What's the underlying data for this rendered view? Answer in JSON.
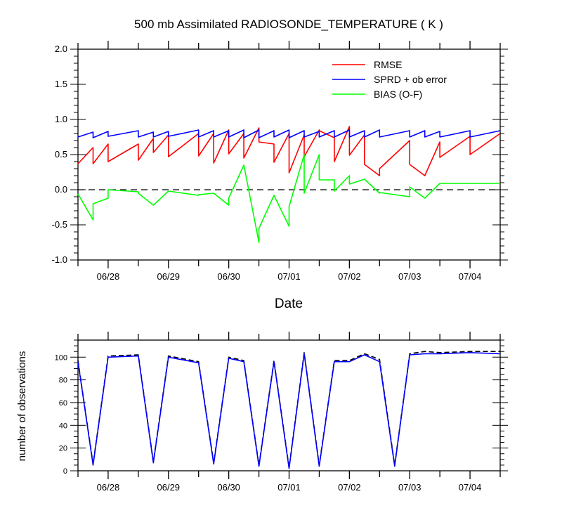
{
  "chart_data": [
    {
      "type": "line",
      "title": "500 mb Assimilated RADIOSONDE_TEMPERATURE ( K )",
      "xlabel": "Date",
      "ylabel": "",
      "x_ticks": [
        "06/28",
        "06/29",
        "06/30",
        "07/01",
        "07/02",
        "07/03",
        "07/04"
      ],
      "ylim": [
        -1.0,
        2.0
      ],
      "yticks": [
        "-1.0",
        "-0.5",
        "0.0",
        "0.5",
        "1.0",
        "1.5",
        "2.0"
      ],
      "grid": false,
      "legend": "top-right",
      "reference_line": {
        "y": 0.0,
        "style": "dashed"
      },
      "series": [
        {
          "name": "RMSE",
          "color": "#ff0000",
          "x": [
            0,
            0.5,
            0.5,
            1,
            1,
            2,
            2,
            2.5,
            2.5,
            3,
            3,
            4,
            4,
            4.5,
            4.5,
            5,
            5,
            5.5,
            5.5,
            6,
            6,
            6.5,
            6.5,
            7,
            7,
            7.5,
            7.5,
            8,
            8,
            8.5,
            8.5,
            9,
            9,
            9.5,
            9.5,
            10,
            10,
            11,
            11,
            11.5,
            11.5,
            12,
            12,
            13,
            13,
            14
          ],
          "values": [
            0.37,
            0.6,
            0.37,
            0.65,
            0.4,
            0.65,
            0.42,
            0.73,
            0.53,
            0.78,
            0.47,
            0.8,
            0.48,
            0.8,
            0.38,
            0.85,
            0.51,
            0.8,
            0.45,
            0.88,
            0.68,
            0.65,
            0.39,
            0.8,
            0.24,
            0.78,
            0.47,
            0.85,
            0.84,
            0.74,
            0.4,
            0.9,
            0.49,
            0.78,
            0.36,
            0.2,
            0.3,
            0.7,
            0.36,
            0.2,
            0.2,
            0.68,
            0.46,
            0.76,
            0.5,
            0.8
          ]
        },
        {
          "name": "SPRD + ob error",
          "color": "#0000ff",
          "x": [
            0,
            0.5,
            0.5,
            1,
            1,
            2,
            2,
            2.5,
            2.5,
            3,
            3,
            4,
            4,
            4.5,
            4.5,
            5,
            5,
            5.5,
            5.5,
            6,
            6,
            6.5,
            6.5,
            7,
            7,
            7.5,
            7.5,
            8,
            8,
            8.5,
            8.5,
            9,
            9,
            9.5,
            9.5,
            10,
            10,
            11,
            11,
            11.5,
            11.5,
            12,
            12,
            13,
            13,
            14
          ],
          "values": [
            0.75,
            0.82,
            0.74,
            0.83,
            0.76,
            0.84,
            0.75,
            0.82,
            0.75,
            0.83,
            0.76,
            0.85,
            0.75,
            0.84,
            0.75,
            0.84,
            0.75,
            0.85,
            0.74,
            0.85,
            0.74,
            0.84,
            0.75,
            0.85,
            0.74,
            0.84,
            0.75,
            0.83,
            0.75,
            0.84,
            0.75,
            0.85,
            0.75,
            0.84,
            0.75,
            0.85,
            0.75,
            0.84,
            0.75,
            0.84,
            0.75,
            0.83,
            0.75,
            0.84,
            0.75,
            0.84
          ]
        },
        {
          "name": "BIAS (O-F)",
          "color": "#00ff00",
          "x": [
            0,
            0.5,
            0.5,
            1,
            1,
            2,
            2,
            2.5,
            2.5,
            3,
            3,
            4,
            4,
            4.5,
            4.5,
            5,
            5,
            5.5,
            5.5,
            6,
            6,
            6.5,
            6.5,
            7,
            7,
            7.5,
            7.5,
            8,
            8,
            8.5,
            8.5,
            9,
            9,
            9.5,
            9.5,
            10,
            10,
            11,
            11,
            11.5,
            11.5,
            12,
            12,
            13,
            13,
            14
          ],
          "values": [
            -0.06,
            -0.43,
            -0.2,
            -0.12,
            0.0,
            -0.03,
            -0.05,
            -0.22,
            -0.22,
            -0.02,
            -0.02,
            -0.08,
            -0.07,
            -0.05,
            -0.05,
            -0.22,
            -0.12,
            0.35,
            0.35,
            -0.75,
            -0.55,
            -0.08,
            -0.08,
            -0.52,
            -0.24,
            0.5,
            -0.05,
            0.5,
            0.14,
            0.14,
            -0.02,
            0.2,
            0.08,
            0.15,
            0.15,
            -0.05,
            -0.04,
            -0.1,
            0.04,
            -0.12,
            -0.12,
            0.09,
            0.09,
            0.09,
            0.09,
            0.09
          ]
        }
      ]
    },
    {
      "type": "line",
      "title": "",
      "xlabel": "",
      "ylabel": "number of observations",
      "x_ticks": [
        "06/28",
        "06/29",
        "06/30",
        "07/01",
        "07/02",
        "07/03",
        "07/04"
      ],
      "ylim": [
        0,
        115
      ],
      "yticks": [
        "0",
        "20",
        "40",
        "60",
        "80",
        "100"
      ],
      "grid": false,
      "series": [
        {
          "color": "#000000",
          "style": "dashed",
          "x": [
            0,
            0.5,
            1,
            2,
            2.5,
            3,
            4,
            4.5,
            5,
            5.5,
            6,
            6.5,
            7,
            7.5,
            8,
            8.5,
            9,
            9.5,
            10,
            10.5,
            11,
            11.5,
            12,
            13,
            14
          ],
          "values": [
            97,
            6,
            101,
            102,
            8,
            101,
            96,
            7,
            100,
            97,
            5,
            97,
            3,
            104,
            5,
            97,
            97,
            103,
            98,
            5,
            103,
            105,
            104,
            105,
            105
          ]
        },
        {
          "color": "#0000ff",
          "style": "solid",
          "x": [
            0,
            0.5,
            1,
            2,
            2.5,
            3,
            4,
            4.5,
            5,
            5.5,
            6,
            6.5,
            7,
            7.5,
            8,
            8.5,
            9,
            9.5,
            10,
            10.5,
            11,
            11.5,
            12,
            13,
            14
          ],
          "values": [
            96,
            5,
            100,
            101,
            7,
            100,
            95,
            6,
            99,
            96,
            4,
            96,
            2,
            103,
            4,
            96,
            96,
            102,
            96,
            4,
            102,
            103,
            103,
            104,
            103
          ]
        }
      ]
    }
  ]
}
